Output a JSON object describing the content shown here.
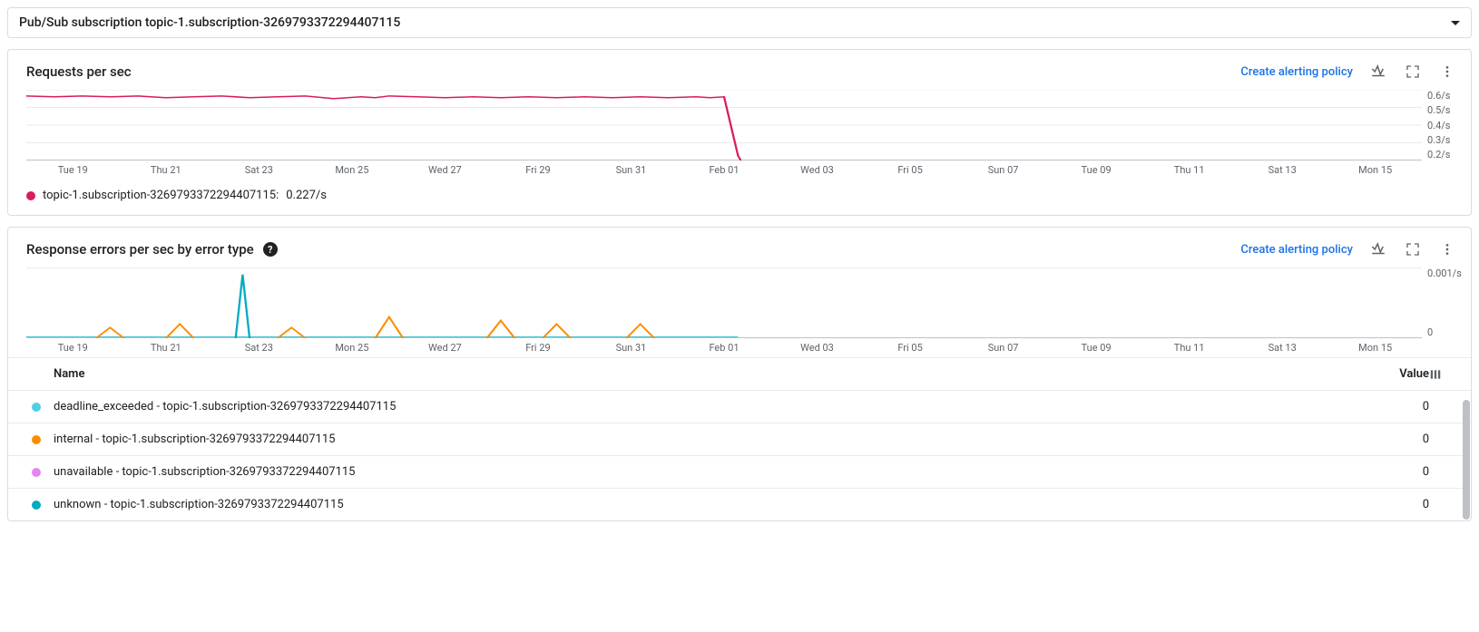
{
  "dropdown": {
    "label": "Pub/Sub subscription topic-1.subscription-3269793372294407115"
  },
  "chart1": {
    "title": "Requests per sec",
    "create_alert_label": "Create alerting policy",
    "type": "line",
    "x_labels": [
      "Tue 19",
      "Thu 21",
      "Sat 23",
      "Mon 25",
      "Wed 27",
      "Fri 29",
      "Sun 31",
      "Feb 01",
      "Wed 03",
      "Fri 05",
      "Sun 07",
      "Tue 09",
      "Thu 11",
      "Sat 13",
      "Mon 15"
    ],
    "y_labels": [
      "0.6/s",
      "0.5/s",
      "0.4/s",
      "0.3/s",
      "0.2/s"
    ],
    "ylim": [
      0.2,
      0.6
    ],
    "grid_color": "#e8eaed",
    "axis_color": "#bdc1c6",
    "series": {
      "color": "#d81b60",
      "points": [
        [
          0,
          0.565
        ],
        [
          2,
          0.56
        ],
        [
          4,
          0.565
        ],
        [
          6,
          0.56
        ],
        [
          8,
          0.565
        ],
        [
          10,
          0.555
        ],
        [
          12,
          0.56
        ],
        [
          14,
          0.565
        ],
        [
          16,
          0.555
        ],
        [
          18,
          0.56
        ],
        [
          20,
          0.565
        ],
        [
          22,
          0.55
        ],
        [
          24,
          0.56
        ],
        [
          25,
          0.555
        ],
        [
          26,
          0.565
        ],
        [
          28,
          0.56
        ],
        [
          30,
          0.555
        ],
        [
          32,
          0.56
        ],
        [
          34,
          0.555
        ],
        [
          36,
          0.56
        ],
        [
          38,
          0.555
        ],
        [
          40,
          0.56
        ],
        [
          42,
          0.555
        ],
        [
          44,
          0.56
        ],
        [
          46,
          0.555
        ],
        [
          48,
          0.56
        ],
        [
          49,
          0.555
        ],
        [
          50,
          0.56
        ],
        [
          51,
          0.227
        ],
        [
          51.2,
          0.2
        ]
      ],
      "x_range": [
        0,
        100
      ]
    },
    "legend": {
      "color": "#d81b60",
      "label": "topic-1.subscription-3269793372294407115:",
      "value": "0.227/s"
    }
  },
  "chart2": {
    "title": "Response errors per sec by error type",
    "create_alert_label": "Create alerting policy",
    "type": "line",
    "x_labels": [
      "Tue 19",
      "Thu 21",
      "Sat 23",
      "Mon 25",
      "Wed 27",
      "Fri 29",
      "Sun 31",
      "Feb 01",
      "Wed 03",
      "Fri 05",
      "Sun 07",
      "Tue 09",
      "Thu 11",
      "Sat 13",
      "Mon 15"
    ],
    "y_labels": [
      "0.001/s",
      "",
      "0"
    ],
    "ylim": [
      0,
      0.001
    ],
    "grid_color": "#e8eaed",
    "axis_color": "#bdc1c6",
    "series_orange": {
      "color": "#fb8c00",
      "paths": [
        [
          [
            5,
            0
          ],
          [
            6,
            0.00015
          ],
          [
            7,
            0
          ]
        ],
        [
          [
            10,
            0
          ],
          [
            11,
            0.0002
          ],
          [
            12,
            0
          ]
        ],
        [
          [
            18,
            0
          ],
          [
            19,
            0.00015
          ],
          [
            20,
            0
          ]
        ],
        [
          [
            25,
            0
          ],
          [
            26,
            0.0003
          ],
          [
            27,
            0
          ]
        ],
        [
          [
            33,
            0
          ],
          [
            34,
            0.00025
          ],
          [
            35,
            0
          ]
        ],
        [
          [
            37,
            0
          ],
          [
            38,
            0.0002
          ],
          [
            39,
            0
          ]
        ],
        [
          [
            43,
            0
          ],
          [
            44,
            0.0002
          ],
          [
            45,
            0
          ]
        ]
      ],
      "x_range": [
        0,
        100
      ]
    },
    "series_teal": {
      "color": "#00acc1",
      "baseline_end": 51,
      "spike": [
        [
          15,
          0
        ],
        [
          15.5,
          0.0009
        ],
        [
          16,
          0
        ]
      ]
    },
    "table": {
      "name_header": "Name",
      "value_header": "Value",
      "rows": [
        {
          "color": "#4dd0e1",
          "name": "deadline_exceeded - topic-1.subscription-3269793372294407115",
          "value": "0"
        },
        {
          "color": "#fb8c00",
          "name": "internal - topic-1.subscription-3269793372294407115",
          "value": "0"
        },
        {
          "color": "#e683f3",
          "name": "unavailable - topic-1.subscription-3269793372294407115",
          "value": "0"
        },
        {
          "color": "#00acc1",
          "name": "unknown - topic-1.subscription-3269793372294407115",
          "value": "0"
        }
      ]
    }
  }
}
